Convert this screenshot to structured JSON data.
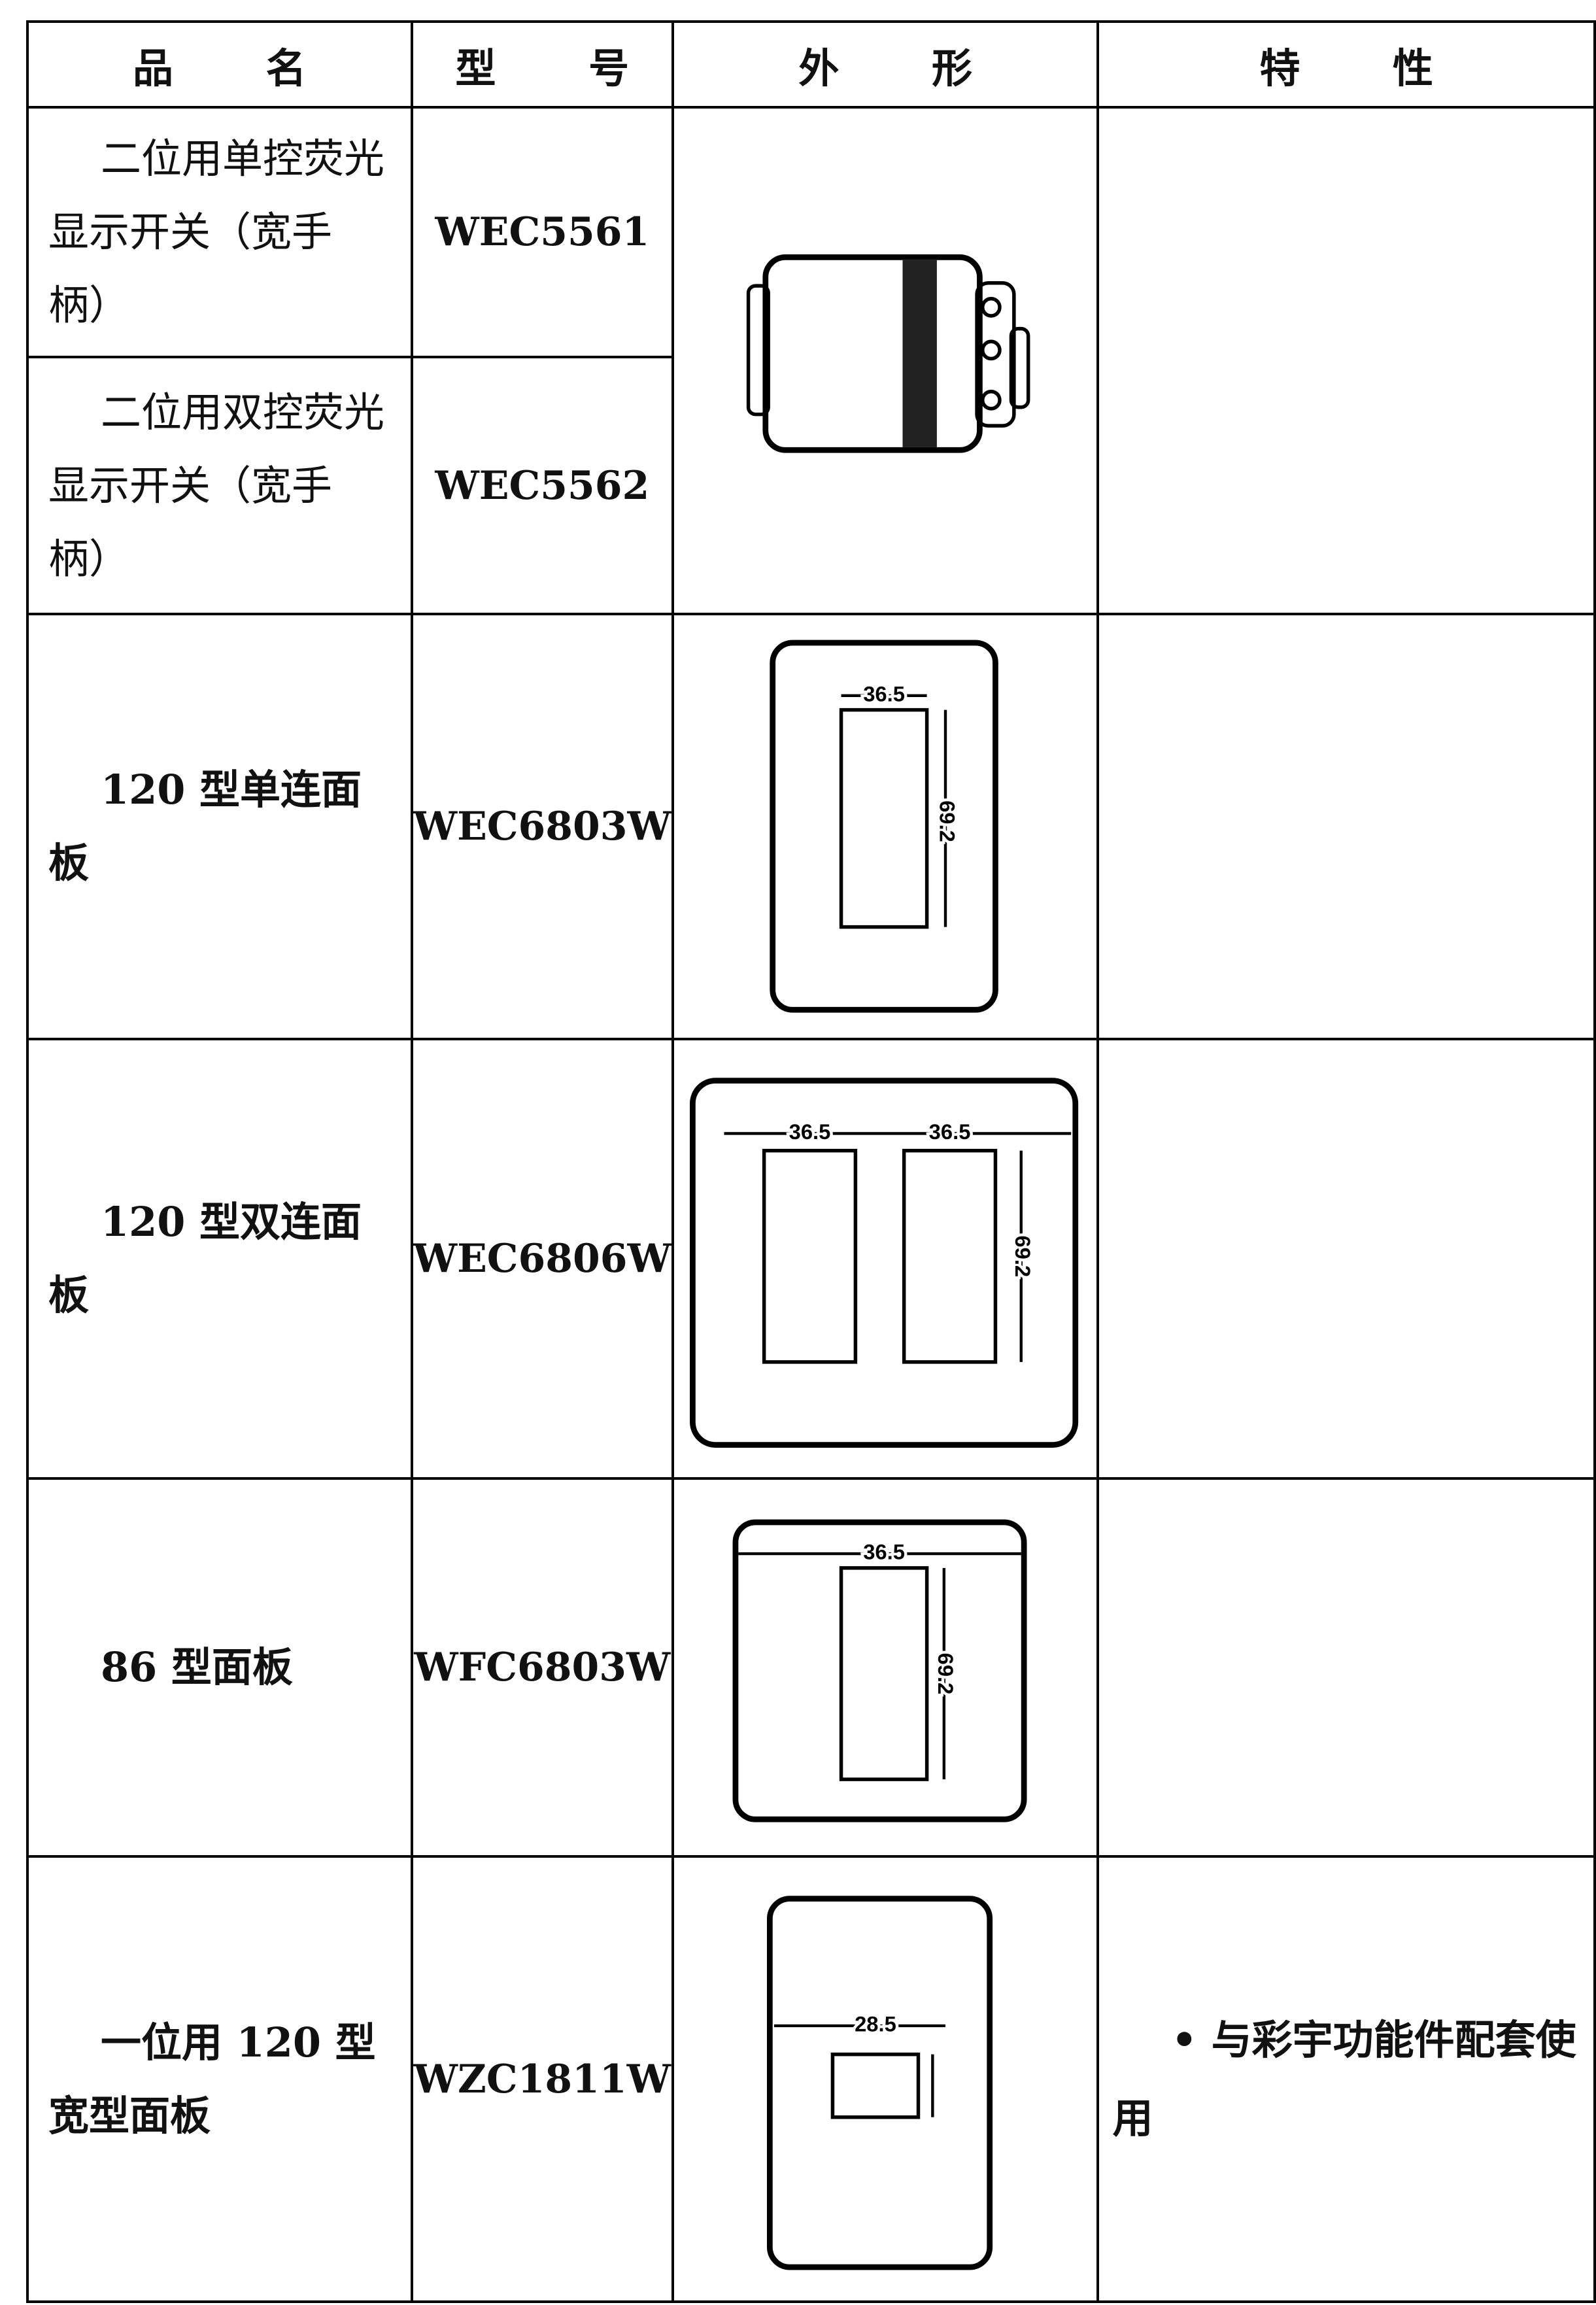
{
  "table": {
    "headers": [
      "品 名",
      "型 号",
      "外 形",
      "特 性"
    ],
    "rows": [
      {
        "name": "二位用单控荧光显示开关（宽手柄）",
        "model": "WEC5561"
      },
      {
        "name": "二位用双控荧光显示开关（宽手柄）",
        "model": "WEC5562"
      },
      {
        "name": "120 型单连面板",
        "model": "WEC6803W",
        "dims": [
          "36.5",
          "69.2"
        ]
      },
      {
        "name": "120 型双连面板",
        "model": "WEC6806W",
        "dims": [
          "36.5",
          "36.5",
          "69.2"
        ]
      },
      {
        "name": "86 型面板",
        "model": "WFC6803W",
        "dims": [
          "36.5",
          "69.2"
        ]
      },
      {
        "name": "一位用 120 型宽型面板",
        "model": "WZC1811W",
        "dims": [
          "28.5"
        ],
        "feature": "• 与彩宇功能件配套使用"
      }
    ]
  }
}
